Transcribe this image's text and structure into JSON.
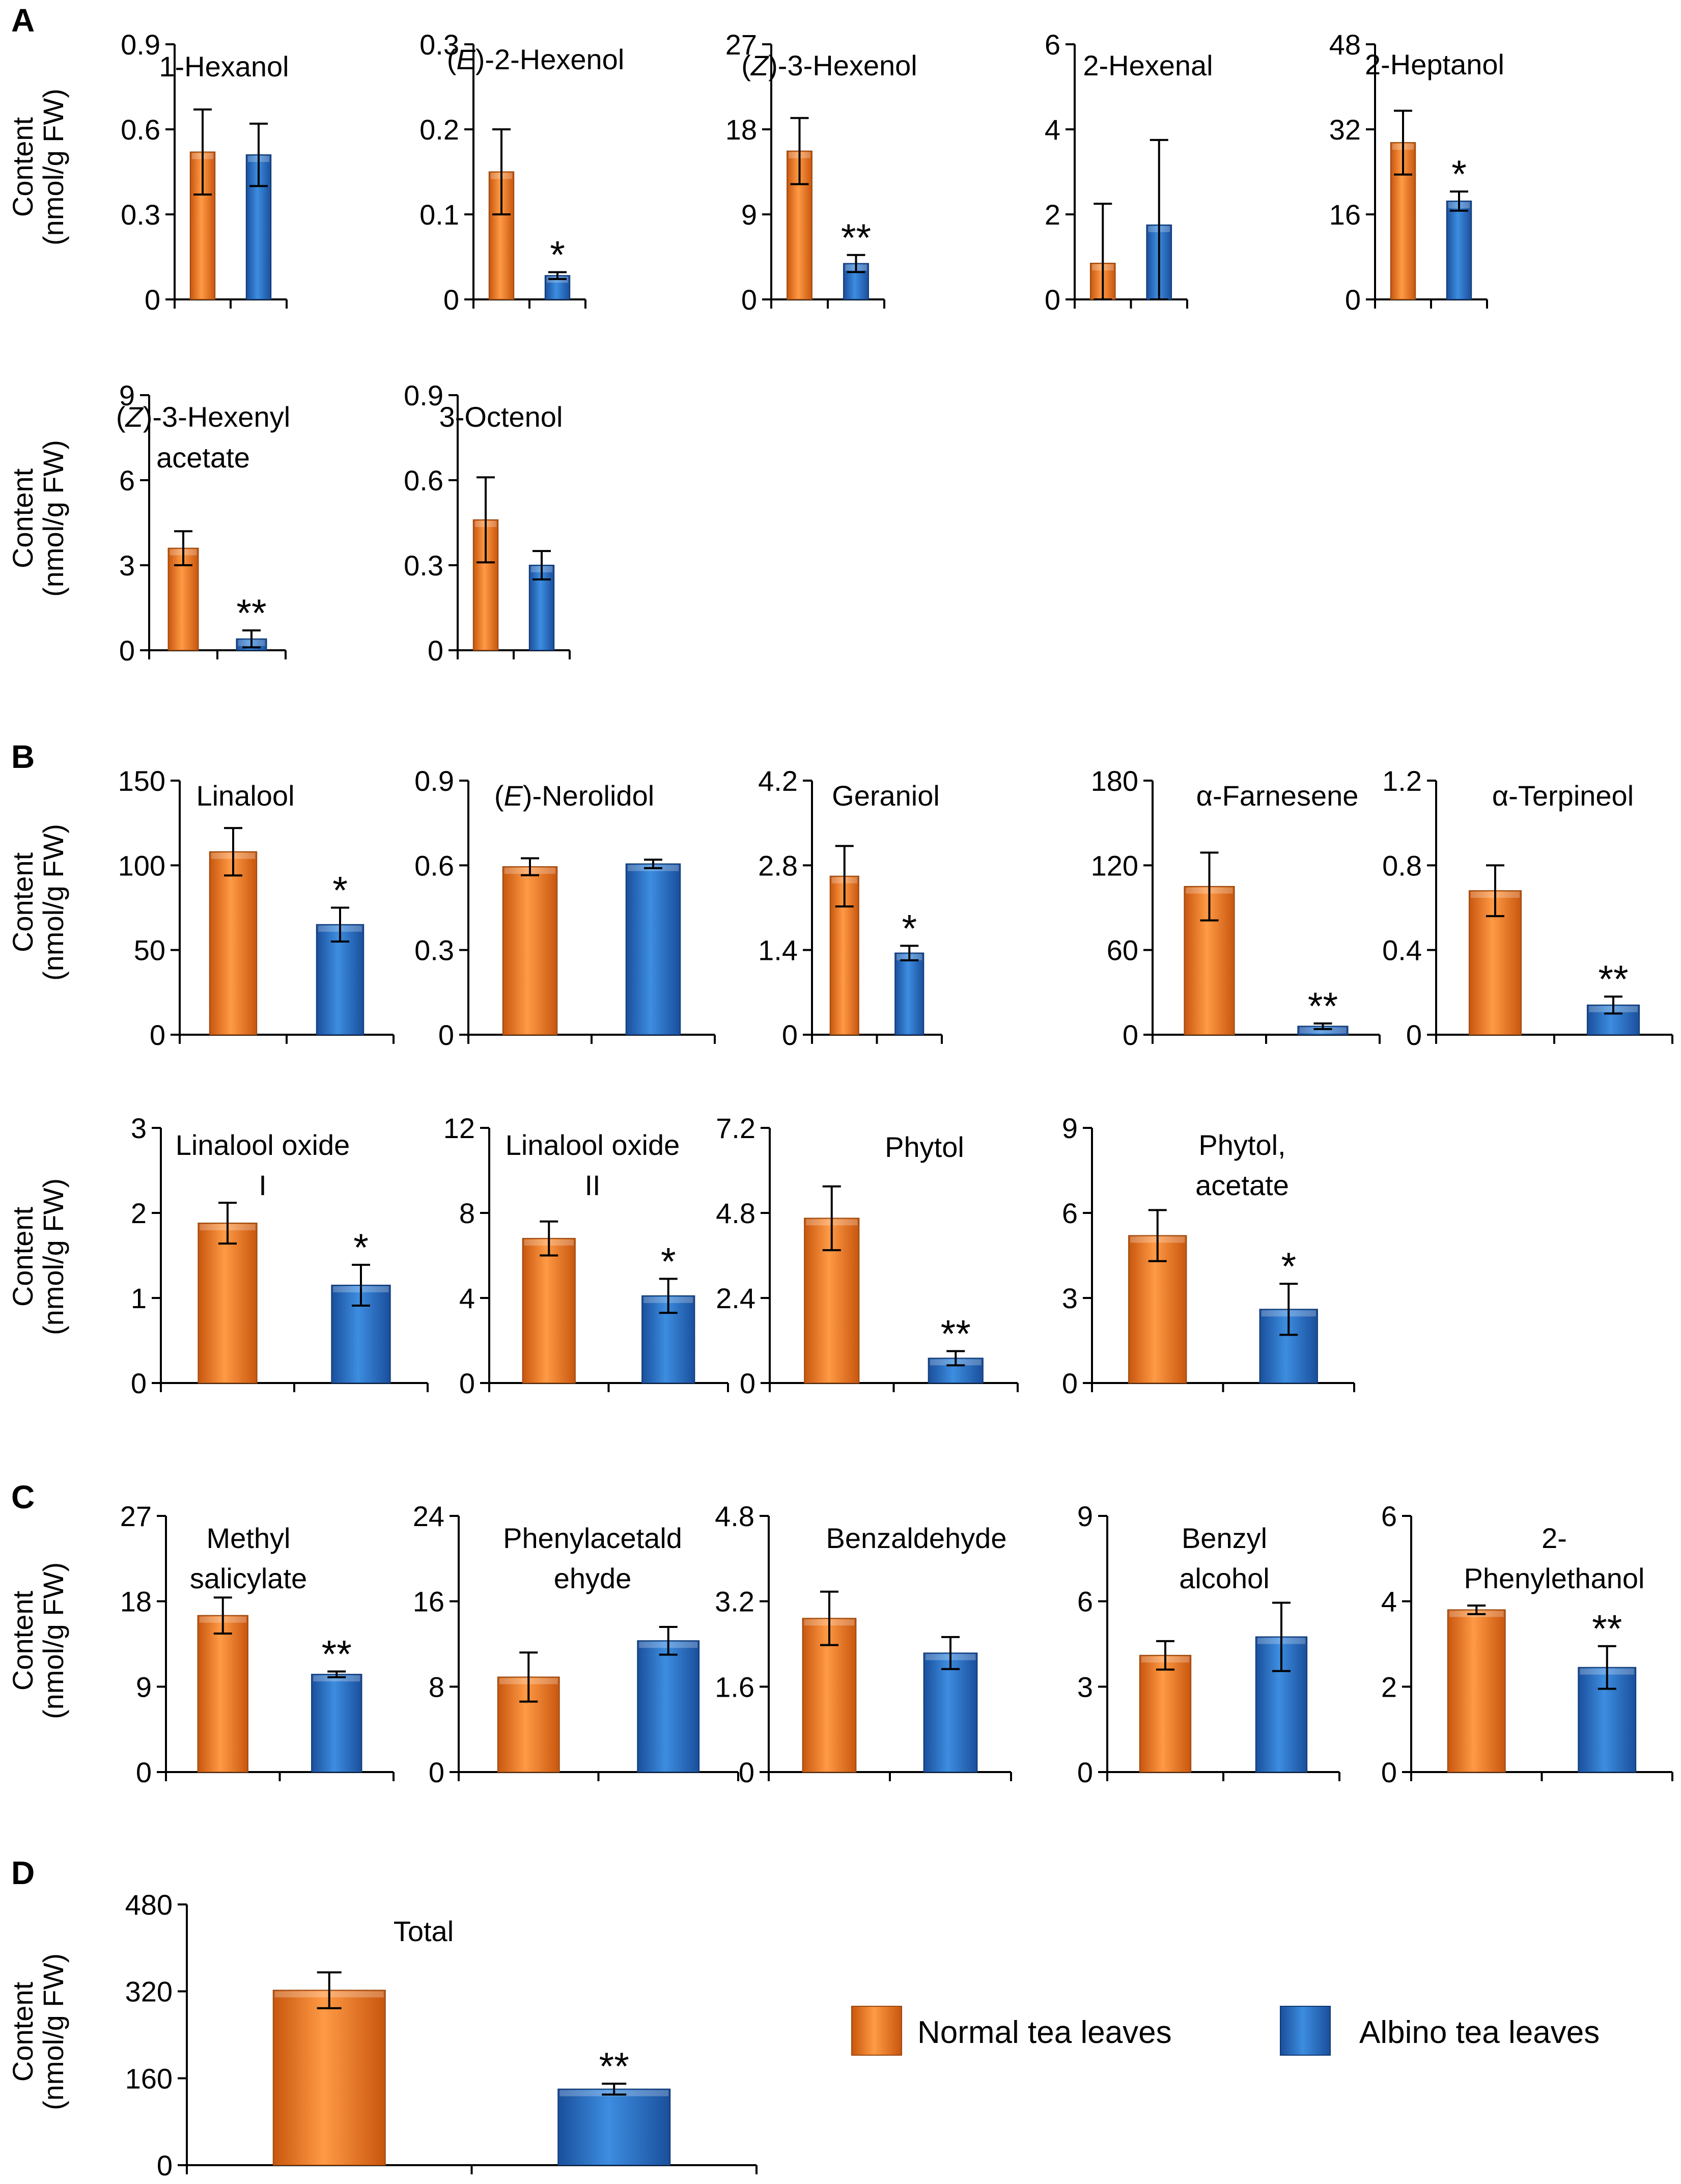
{
  "colors": {
    "normal": "#f07f24",
    "albino": "#2a6fc4",
    "axis": "#000000"
  },
  "legend": [
    {
      "name": "Normal tea leaves",
      "color": "#f07f24"
    },
    {
      "name": "Albino tea leaves",
      "color": "#2a6fc4"
    }
  ],
  "chart_data": [
    {
      "type": "bar",
      "panel": "A",
      "series_names": [
        "Normal tea leaves",
        "Albino tea leaves"
      ],
      "ylabel": [
        "Content",
        "(nmol/g FW)"
      ],
      "yticks": [
        "0",
        "0.3",
        "0.6",
        "0.9"
      ],
      "ylim": [
        0,
        0.9
      ],
      "title_parts": [
        [
          "1-Hexanol",
          ""
        ]
      ],
      "values": [
        0.52,
        0.51
      ],
      "errors": [
        0.15,
        0.11
      ],
      "sig": [
        "",
        ""
      ]
    },
    {
      "type": "bar",
      "yticks": [
        "0",
        "0.1",
        "0.2",
        "0.3"
      ],
      "ylim": [
        0,
        0.3
      ],
      "title_parts": [
        [
          "(",
          ""
        ],
        [
          "E",
          "i"
        ],
        [
          ")-2-Hexenol",
          ""
        ]
      ],
      "values": [
        0.15,
        0.028
      ],
      "errors": [
        0.05,
        0.004
      ],
      "sig": [
        "",
        "*"
      ]
    },
    {
      "type": "bar",
      "yticks": [
        "0",
        "9",
        "18",
        "27"
      ],
      "ylim": [
        0,
        27
      ],
      "title_parts": [
        [
          "(",
          ""
        ],
        [
          "Z",
          "i"
        ],
        [
          ")-3-Hexenol",
          ""
        ]
      ],
      "values": [
        15.7,
        3.8
      ],
      "errors": [
        3.5,
        0.9
      ],
      "sig": [
        "",
        "**"
      ]
    },
    {
      "type": "bar",
      "yticks": [
        "0",
        "2",
        "4",
        "6"
      ],
      "ylim": [
        0,
        6
      ],
      "title_parts": [
        [
          "2-Hexenal",
          ""
        ]
      ],
      "values": [
        0.85,
        1.75
      ],
      "errors": [
        1.4,
        2.0
      ],
      "sig": [
        "",
        ""
      ]
    },
    {
      "type": "bar",
      "yticks": [
        "0",
        "16",
        "32",
        "48"
      ],
      "ylim": [
        0,
        48
      ],
      "title_parts": [
        [
          "2-Heptanol",
          ""
        ]
      ],
      "values": [
        29.5,
        18.5
      ],
      "errors": [
        6.0,
        1.8
      ],
      "sig": [
        "",
        "*"
      ]
    },
    {
      "type": "bar",
      "panel_row_label": true,
      "ylabel": [
        "Content",
        "(nmol/g FW)"
      ],
      "yticks": [
        "0",
        "3",
        "6",
        "9"
      ],
      "ylim": [
        0,
        9
      ],
      "title_parts": [
        [
          "(",
          ""
        ],
        [
          "Z",
          "i"
        ],
        [
          ")-3-Hexenyl",
          ""
        ]
      ],
      "title2": "acetate",
      "values": [
        3.6,
        0.4
      ],
      "errors": [
        0.6,
        0.3
      ],
      "sig": [
        "",
        "**"
      ]
    },
    {
      "type": "bar",
      "yticks": [
        "0",
        "0.3",
        "0.6",
        "0.9"
      ],
      "ylim": [
        0,
        0.9
      ],
      "title_parts": [
        [
          "3-Octenol",
          ""
        ]
      ],
      "values": [
        0.46,
        0.3
      ],
      "errors": [
        0.15,
        0.05
      ],
      "sig": [
        "",
        ""
      ]
    },
    {
      "type": "bar",
      "panel": "B",
      "ylabel": [
        "Content",
        "(nmol/g FW)"
      ],
      "yticks": [
        "0",
        "50",
        "100",
        "150"
      ],
      "ylim": [
        0,
        150
      ],
      "title_parts": [
        [
          "Linalool",
          ""
        ]
      ],
      "values": [
        108,
        65
      ],
      "errors": [
        14,
        10
      ],
      "sig": [
        "",
        "*"
      ]
    },
    {
      "type": "bar",
      "yticks": [
        "0",
        "0.3",
        "0.6",
        "0.9"
      ],
      "ylim": [
        0,
        0.9
      ],
      "title_parts": [
        [
          "(",
          ""
        ],
        [
          "E",
          "i"
        ],
        [
          ")-Nerolidol",
          ""
        ]
      ],
      "values": [
        0.595,
        0.605
      ],
      "errors": [
        0.03,
        0.015
      ],
      "sig": [
        "",
        ""
      ]
    },
    {
      "type": "bar",
      "yticks": [
        "0",
        "1.4",
        "2.8",
        "4.2"
      ],
      "ylim": [
        0,
        4.2
      ],
      "title_parts": [
        [
          "Geraniol",
          ""
        ]
      ],
      "values": [
        2.62,
        1.35
      ],
      "errors": [
        0.5,
        0.12
      ],
      "sig": [
        "",
        "*"
      ]
    },
    {
      "type": "bar",
      "yticks": [
        "0",
        "60",
        "120",
        "180"
      ],
      "ylim": [
        0,
        180
      ],
      "title_parts": [
        [
          "α-Farnesene",
          ""
        ]
      ],
      "values": [
        105,
        6
      ],
      "errors": [
        24,
        2
      ],
      "sig": [
        "",
        "**"
      ]
    },
    {
      "type": "bar",
      "yticks": [
        "0",
        "0.4",
        "0.8",
        "1.2"
      ],
      "ylim": [
        0,
        1.2
      ],
      "title_parts": [
        [
          "α-Terpineol",
          ""
        ]
      ],
      "values": [
        0.68,
        0.14
      ],
      "errors": [
        0.12,
        0.04
      ],
      "sig": [
        "",
        "**"
      ]
    },
    {
      "type": "bar",
      "ylabel": [
        "Content",
        "(nmol/g FW)"
      ],
      "yticks": [
        "0",
        "1",
        "2",
        "3"
      ],
      "ylim": [
        0,
        3
      ],
      "title_parts": [
        [
          "Linalool oxide",
          ""
        ]
      ],
      "title2": "I",
      "values": [
        1.88,
        1.15
      ],
      "errors": [
        0.24,
        0.24
      ],
      "sig": [
        "",
        "*"
      ]
    },
    {
      "type": "bar",
      "yticks": [
        "0",
        "4",
        "8",
        "12"
      ],
      "ylim": [
        0,
        12
      ],
      "title_parts": [
        [
          "Linalool oxide",
          ""
        ]
      ],
      "title2": "II",
      "values": [
        6.8,
        4.1
      ],
      "errors": [
        0.8,
        0.8
      ],
      "sig": [
        "",
        "*"
      ]
    },
    {
      "type": "bar",
      "yticks": [
        "0",
        "2.4",
        "4.8",
        "7.2"
      ],
      "ylim": [
        0,
        7.2
      ],
      "title_parts": [
        [
          "Phytol",
          ""
        ]
      ],
      "values": [
        4.65,
        0.7
      ],
      "errors": [
        0.9,
        0.2
      ],
      "sig": [
        "",
        "**"
      ]
    },
    {
      "type": "bar",
      "yticks": [
        "0",
        "3",
        "6",
        "9"
      ],
      "ylim": [
        0,
        9
      ],
      "title_parts": [
        [
          "Phytol,",
          ""
        ]
      ],
      "title2": "acetate",
      "values": [
        5.2,
        2.6
      ],
      "errors": [
        0.9,
        0.9
      ],
      "sig": [
        "",
        "*"
      ]
    },
    {
      "type": "bar",
      "panel": "C",
      "ylabel": [
        "Content",
        "(nmol/g FW)"
      ],
      "yticks": [
        "0",
        "9",
        "18",
        "27"
      ],
      "ylim": [
        0,
        27
      ],
      "title_parts": [
        [
          "Methyl",
          ""
        ]
      ],
      "title2": "salicylate",
      "values": [
        16.5,
        10.3
      ],
      "errors": [
        1.9,
        0.3
      ],
      "sig": [
        "",
        "**"
      ]
    },
    {
      "type": "bar",
      "yticks": [
        "0",
        "8",
        "16",
        "24"
      ],
      "ylim": [
        0,
        24
      ],
      "title_parts": [
        [
          "Phenylacetald",
          ""
        ]
      ],
      "title2": "ehyde",
      "values": [
        8.9,
        12.3
      ],
      "errors": [
        2.3,
        1.3
      ],
      "sig": [
        "",
        ""
      ]
    },
    {
      "type": "bar",
      "yticks": [
        "0",
        "1.6",
        "3.2",
        "4.8"
      ],
      "ylim": [
        0,
        4.8
      ],
      "title_parts": [
        [
          "Benzaldehyde",
          ""
        ]
      ],
      "values": [
        2.88,
        2.23
      ],
      "errors": [
        0.5,
        0.3
      ],
      "sig": [
        "",
        ""
      ]
    },
    {
      "type": "bar",
      "yticks": [
        "0",
        "3",
        "6",
        "9"
      ],
      "ylim": [
        0,
        9
      ],
      "title_parts": [
        [
          "Benzyl",
          ""
        ]
      ],
      "title2": "alcohol",
      "values": [
        4.1,
        4.75
      ],
      "errors": [
        0.5,
        1.2
      ],
      "sig": [
        "",
        ""
      ]
    },
    {
      "type": "bar",
      "yticks": [
        "0",
        "2",
        "4",
        "6"
      ],
      "ylim": [
        0,
        6
      ],
      "title_parts": [
        [
          "2-",
          ""
        ]
      ],
      "title2": "Phenylethanol",
      "values": [
        3.8,
        2.45
      ],
      "errors": [
        0.1,
        0.5
      ],
      "sig": [
        "",
        "**"
      ]
    },
    {
      "type": "bar",
      "panel": "D",
      "ylabel": [
        "Content",
        "(nmol/g FW)"
      ],
      "yticks": [
        "0",
        "160",
        "320",
        "480"
      ],
      "ylim": [
        0,
        480
      ],
      "title_parts": [
        [
          "Total",
          ""
        ]
      ],
      "values": [
        322,
        140
      ],
      "errors": [
        33,
        10
      ],
      "sig": [
        "",
        "**"
      ]
    }
  ]
}
